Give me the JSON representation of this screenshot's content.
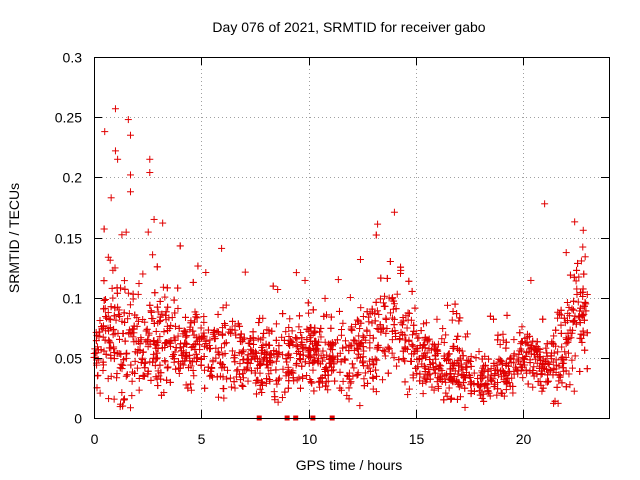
{
  "chart_data": {
    "type": "scatter",
    "title": "Day 076 of 2021, SRMTID for receiver gabo",
    "xlabel": "GPS time / hours",
    "ylabel": "SRMTID / TECUs",
    "xlim": [
      0,
      24
    ],
    "ylim": [
      0,
      0.3
    ],
    "xticks": [
      0,
      5,
      10,
      15,
      20
    ],
    "yticks": [
      0,
      0.05,
      0.1,
      0.15,
      0.2,
      0.25,
      0.3
    ],
    "xtick_labels": [
      "0",
      "5",
      "10",
      "15",
      "20"
    ],
    "ytick_labels": [
      "0",
      "0.05",
      "0.1",
      "0.15",
      "0.2",
      "0.25",
      "0.3"
    ],
    "grid": true,
    "marker": "plus",
    "color": "#e00000",
    "series": [
      {
        "name": "SRMTID",
        "profile_x": [
          0,
          0.5,
          1,
          1.5,
          2,
          2.5,
          3,
          3.5,
          4,
          4.5,
          5,
          5.5,
          6,
          6.5,
          7,
          7.5,
          8,
          8.5,
          9,
          9.5,
          10,
          10.5,
          11,
          11.5,
          12,
          12.5,
          13,
          13.5,
          14,
          14.5,
          15,
          15.5,
          16,
          16.5,
          17,
          17.5,
          18,
          18.5,
          19,
          19.5,
          20,
          20.5,
          21,
          21.5,
          22,
          22.5,
          23
        ],
        "profile_median": [
          0.05,
          0.06,
          0.065,
          0.065,
          0.06,
          0.058,
          0.058,
          0.06,
          0.062,
          0.06,
          0.055,
          0.052,
          0.052,
          0.055,
          0.05,
          0.05,
          0.048,
          0.048,
          0.052,
          0.055,
          0.055,
          0.052,
          0.048,
          0.046,
          0.046,
          0.055,
          0.065,
          0.072,
          0.078,
          0.065,
          0.052,
          0.045,
          0.042,
          0.042,
          0.045,
          0.035,
          0.032,
          0.035,
          0.04,
          0.045,
          0.05,
          0.048,
          0.045,
          0.05,
          0.065,
          0.085,
          0.09
        ],
        "profile_spread": [
          0.02,
          0.045,
          0.07,
          0.065,
          0.05,
          0.045,
          0.04,
          0.035,
          0.035,
          0.035,
          0.03,
          0.035,
          0.035,
          0.04,
          0.03,
          0.03,
          0.03,
          0.035,
          0.035,
          0.035,
          0.035,
          0.03,
          0.03,
          0.035,
          0.035,
          0.04,
          0.045,
          0.05,
          0.06,
          0.045,
          0.03,
          0.03,
          0.025,
          0.03,
          0.03,
          0.025,
          0.02,
          0.02,
          0.025,
          0.025,
          0.025,
          0.025,
          0.025,
          0.035,
          0.05,
          0.055,
          0.045
        ],
        "notable_points": [
          [
            1.0,
            0.257
          ],
          [
            1.6,
            0.248
          ],
          [
            0.5,
            0.238
          ],
          [
            1.7,
            0.235
          ],
          [
            1.0,
            0.222
          ],
          [
            2.6,
            0.215
          ],
          [
            1.1,
            0.215
          ],
          [
            2.6,
            0.204
          ],
          [
            1.7,
            0.202
          ],
          [
            0.8,
            0.183
          ],
          [
            1.7,
            0.188
          ],
          [
            21.0,
            0.178
          ],
          [
            14.0,
            0.171
          ],
          [
            2.8,
            0.165
          ],
          [
            3.2,
            0.162
          ],
          [
            22.4,
            0.163
          ],
          [
            22.8,
            0.156
          ]
        ],
        "zero_values_x": [
          7.7,
          9.0,
          9.4,
          10.2,
          11.1
        ]
      }
    ]
  }
}
